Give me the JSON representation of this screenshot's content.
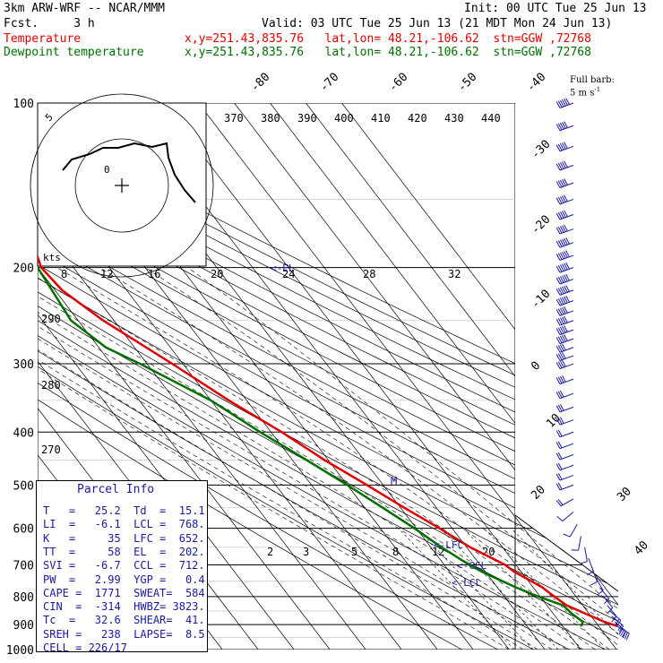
{
  "header": {
    "model": "3km ARW-WRF -- NCAR/MMM",
    "init": "Init: 00 UTC Tue 25 Jun 13",
    "fcst": "Fcst.     3 h",
    "valid": "Valid: 03 UTC Tue 25 Jun 13 (21 MDT Mon 24 Jun 13)",
    "temp_label": "Temperature",
    "dew_label": "Dewpoint temperature",
    "temp_loc": "x,y=251.43,835.76   lat,lon= 48.21,-106.62  stn=GGW ,72768",
    "dew_loc": "x,y=251.43,835.76   lat,lon= 48.21,-106.62  stn=GGW ,72768",
    "barb_legend_1": "Full barb:",
    "barb_legend_2": "5 m s",
    "barb_legend_sup": "-1",
    "temp_color": "#e00000",
    "dew_color": "#007000"
  },
  "parcel_info": {
    "title": "Parcel Info",
    "rows": [
      "T   =   25.2  Td  =  15.1",
      "LI  =   -6.1  LCL =  768.",
      "K   =     35  LFC =  652.",
      "TT  =     58  EL  =  202.",
      "SVI =   -6.7  CCL =  712.",
      "PW  =   2.99  YGP =   0.4",
      "CAPE =  1771  SWEAT=  584",
      "CIN  =  -314  HWBZ= 3823.",
      "Tc  =   32.6  SHEAR=  41.",
      "SREH =   238  LAPSE=  8.5",
      "CELL = 226/17"
    ]
  },
  "hodograph": {
    "speed_unit": "kts",
    "ring_labels": [
      "5",
      "0"
    ]
  },
  "chart_data": {
    "type": "line",
    "title": "",
    "ylabel": "",
    "xlabel": "",
    "y_scale": "log-pressure (inverted)",
    "ylim": [
      1000,
      100
    ],
    "pressure_ticks": [
      "100",
      "200",
      "300",
      "400",
      "500",
      "600",
      "700",
      "800",
      "900",
      "1000"
    ],
    "isotherm_labels": [
      "-80",
      "-70",
      "-60",
      "-50",
      "-40",
      "-30",
      "-20",
      "-10",
      "0",
      "10",
      "20",
      "30",
      "40"
    ],
    "theta_labels": [
      "370",
      "380",
      "390",
      "400",
      "410",
      "420",
      "430",
      "440"
    ],
    "mixing_ratio_labels": [
      "8",
      "12",
      "16",
      "20",
      "24",
      "28",
      "32"
    ],
    "lower_mixing_labels": [
      "2",
      "3",
      "5",
      "8",
      "12",
      "20"
    ],
    "thetae_labels": [
      "290",
      "280",
      "270"
    ],
    "markers": [
      "<-LFC",
      "<-CCL",
      "<-LCL",
      "<-EL",
      "M"
    ],
    "series": [
      {
        "name": "Temperature",
        "color": "#e00000",
        "points": [
          [
            906,
            25.2
          ],
          [
            890,
            22.5
          ],
          [
            860,
            19
          ],
          [
            830,
            15.5
          ],
          [
            790,
            13.5
          ],
          [
            768,
            12.5
          ],
          [
            720,
            8
          ],
          [
            700,
            7
          ],
          [
            650,
            1
          ],
          [
            600,
            -3.5
          ],
          [
            550,
            -9
          ],
          [
            500,
            -14.5
          ],
          [
            450,
            -21
          ],
          [
            400,
            -27
          ],
          [
            350,
            -35
          ],
          [
            300,
            -43
          ],
          [
            250,
            -53
          ],
          [
            220,
            -58
          ],
          [
            200,
            -59
          ],
          [
            180,
            -56
          ],
          [
            160,
            -51
          ],
          [
            140,
            -48
          ],
          [
            120,
            -44
          ],
          [
            100,
            -42
          ]
        ]
      },
      {
        "name": "Dewpoint temperature",
        "color": "#007000",
        "points": [
          [
            906,
            15.1
          ],
          [
            890,
            16.5
          ],
          [
            860,
            15.2
          ],
          [
            830,
            14.5
          ],
          [
            800,
            9.5
          ],
          [
            768,
            5
          ],
          [
            720,
            -1
          ],
          [
            700,
            -3
          ],
          [
            650,
            -7
          ],
          [
            600,
            -10.5
          ],
          [
            550,
            -15
          ],
          [
            500,
            -20
          ],
          [
            450,
            -26
          ],
          [
            400,
            -33
          ],
          [
            350,
            -40
          ],
          [
            300,
            -52
          ],
          [
            280,
            -58
          ],
          [
            250,
            -62
          ],
          [
            200,
            -60
          ],
          [
            180,
            -64
          ],
          [
            160,
            -70
          ],
          [
            140,
            -79
          ],
          [
            130,
            -86
          ],
          [
            120,
            -85
          ],
          [
            100,
            -81
          ]
        ]
      }
    ],
    "wind_barbs_note": "wind barbs plotted along right edge",
    "wind_barbs": [
      [
        100,
        250,
        55
      ],
      [
        110,
        250,
        52
      ],
      [
        120,
        250,
        50
      ],
      [
        130,
        250,
        48
      ],
      [
        140,
        250,
        45
      ],
      [
        150,
        250,
        45
      ],
      [
        160,
        250,
        48
      ],
      [
        170,
        250,
        50
      ],
      [
        180,
        250,
        55
      ],
      [
        190,
        250,
        58
      ],
      [
        200,
        250,
        60
      ],
      [
        210,
        250,
        58
      ],
      [
        220,
        250,
        55
      ],
      [
        230,
        250,
        55
      ],
      [
        240,
        250,
        52
      ],
      [
        250,
        250,
        50
      ],
      [
        260,
        250,
        48
      ],
      [
        270,
        250,
        45
      ],
      [
        280,
        250,
        42
      ],
      [
        290,
        250,
        40
      ],
      [
        300,
        250,
        38
      ],
      [
        320,
        250,
        35
      ],
      [
        340,
        250,
        30
      ],
      [
        360,
        250,
        28
      ],
      [
        380,
        250,
        25
      ],
      [
        400,
        250,
        22
      ],
      [
        420,
        250,
        20
      ],
      [
        440,
        250,
        20
      ],
      [
        460,
        250,
        18
      ],
      [
        480,
        250,
        16
      ],
      [
        500,
        250,
        15
      ],
      [
        530,
        240,
        15
      ],
      [
        560,
        230,
        12
      ],
      [
        590,
        210,
        10
      ],
      [
        620,
        190,
        8
      ],
      [
        650,
        170,
        6
      ],
      [
        680,
        160,
        5
      ],
      [
        710,
        160,
        5
      ],
      [
        740,
        150,
        5
      ],
      [
        770,
        140,
        5
      ],
      [
        800,
        140,
        6
      ],
      [
        830,
        140,
        10
      ],
      [
        850,
        130,
        15
      ],
      [
        870,
        130,
        20
      ],
      [
        890,
        130,
        25
      ],
      [
        906,
        120,
        25
      ]
    ]
  }
}
